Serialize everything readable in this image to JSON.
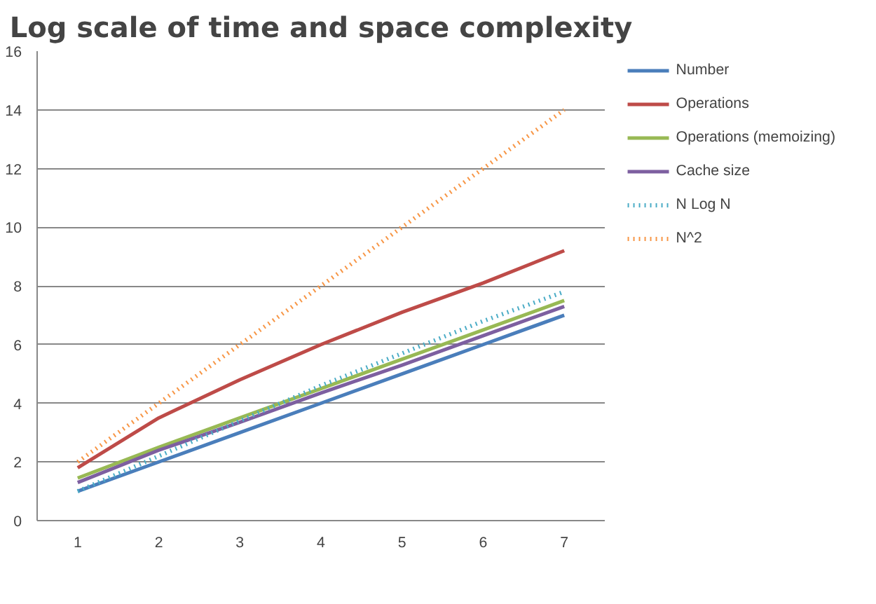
{
  "chart_data": {
    "type": "line",
    "title": "Log scale of time and space complexity",
    "categories": [
      "1",
      "2",
      "3",
      "4",
      "5",
      "6",
      "7"
    ],
    "ylim": [
      0,
      16
    ],
    "yticks": [
      0,
      2,
      4,
      6,
      8,
      10,
      12,
      14,
      16
    ],
    "grid": "y",
    "legend": "right",
    "series": [
      {
        "name": "Number",
        "color": "#4a7ebb",
        "values": [
          1,
          2,
          3,
          4,
          5,
          6,
          7
        ]
      },
      {
        "name": "Operations",
        "color": "#be4b48",
        "values": [
          1.8,
          3.5,
          4.8,
          6.0,
          7.1,
          8.1,
          9.2
        ]
      },
      {
        "name": "Operations (memoizing)",
        "color": "#98b954",
        "values": [
          1.45,
          2.5,
          3.5,
          4.5,
          5.5,
          6.5,
          7.5
        ]
      },
      {
        "name": "Cache size",
        "color": "#7d5fa0",
        "values": [
          1.3,
          2.4,
          3.35,
          4.35,
          5.3,
          6.3,
          7.3
        ]
      },
      {
        "name": "N Log N",
        "color": "#4bacc6",
        "line_style": "dotted",
        "values": [
          1.0,
          2.2,
          3.4,
          4.6,
          5.7,
          6.8,
          7.8
        ]
      },
      {
        "name": "N^2",
        "color": "#f79646",
        "line_style": "dotted",
        "values": [
          2,
          4,
          6,
          8,
          10,
          12,
          14
        ]
      }
    ]
  }
}
